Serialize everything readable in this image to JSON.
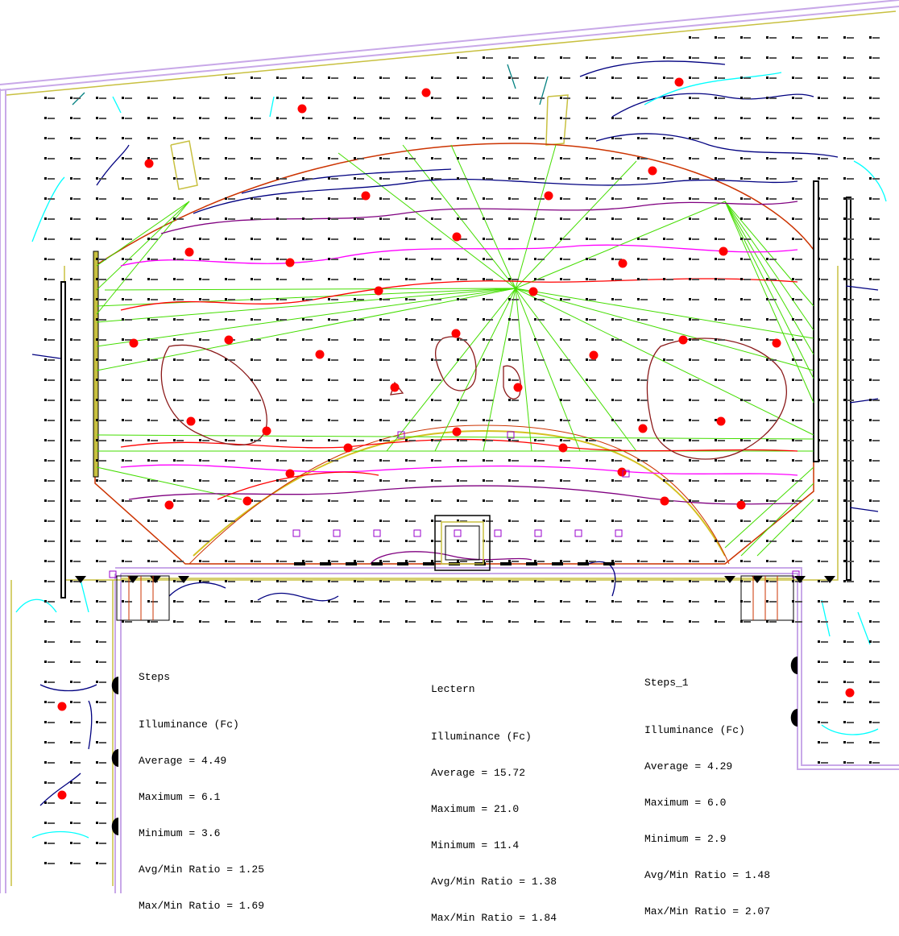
{
  "summaries": [
    {
      "title": "Steps",
      "heading": "Illuminance (Fc)",
      "lines": [
        "Average = 4.49",
        "Maximum = 6.1",
        "Minimum = 3.6",
        "Avg/Min Ratio = 1.25",
        "Max/Min Ratio = 1.69"
      ]
    },
    {
      "title": "Lectern",
      "heading": "Illuminance (Fc)",
      "lines": [
        "Average = 15.72",
        "Maximum = 21.0",
        "Minimum = 11.4",
        "Avg/Min Ratio = 1.38",
        "Max/Min Ratio = 1.84"
      ]
    },
    {
      "title": "Steps_1",
      "heading": "Illuminance (Fc)",
      "lines": [
        "Average = 4.29",
        "Maximum = 6.0",
        "Minimum = 2.9",
        "Avg/Min Ratio = 1.48",
        "Max/Min Ratio = 2.07"
      ]
    }
  ],
  "colors": {
    "wall_outline": "#c8a8e8",
    "stage_edge": "#d4c020",
    "stage_outline": "#cc3300",
    "contour_red": "#ff0000",
    "contour_darkred": "#8b1a1a",
    "contour_purple": "#800080",
    "contour_magenta": "#ff00ff",
    "contour_navy": "#000080",
    "contour_cyan": "#00ffff",
    "contour_teal": "#008080",
    "beam_green": "#44dd00",
    "fixture_red": "#ff0000",
    "sensor_purple": "#9900cc"
  }
}
